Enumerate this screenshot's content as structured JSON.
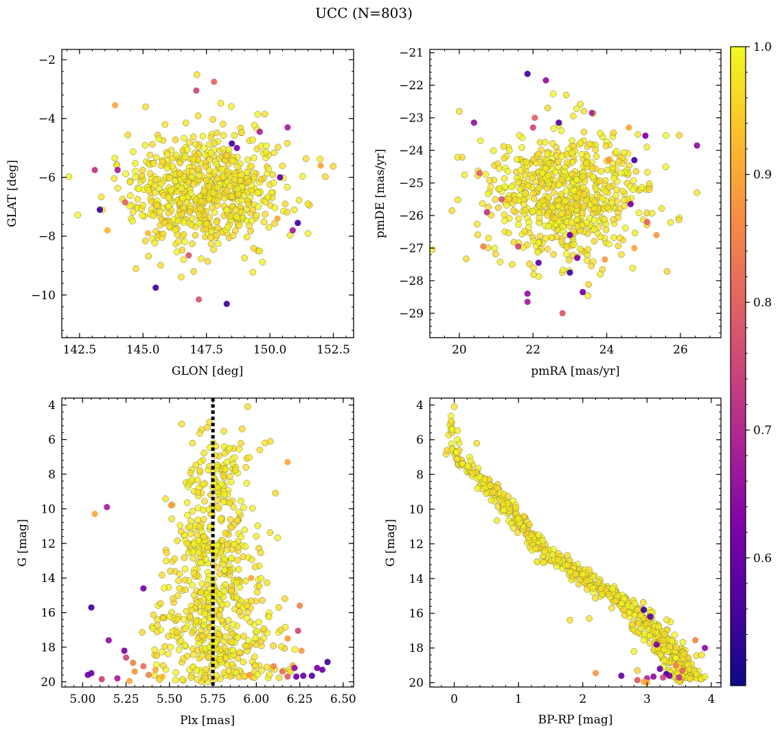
{
  "chart_data": {
    "title": "UCC (N=803)",
    "colorbar": {
      "colormap": "plasma",
      "range": [
        0.5,
        1.0
      ],
      "ticks": [
        0.6,
        0.7,
        0.8,
        0.9,
        1.0
      ],
      "tick_labels": [
        "0.6",
        "0.7",
        "0.8",
        "0.9",
        "1.0"
      ]
    },
    "panels": [
      {
        "type": "scatter",
        "xlabel": "GLON [deg]",
        "ylabel": "GLAT [deg]",
        "xlim": [
          141.8,
          153.3
        ],
        "ylim": [
          -11.45,
          -1.65
        ],
        "y_inverted": false,
        "xticks": [
          142.5,
          145.0,
          147.5,
          150.0,
          152.5
        ],
        "xtick_labels": [
          "142.5",
          "145.0",
          "147.5",
          "150.0",
          "152.5"
        ],
        "yticks": [
          -10,
          -8,
          -6,
          -4,
          -2
        ],
        "ytick_labels": [
          "−10",
          "−8",
          "−6",
          "−4",
          "−2"
        ],
        "cluster": {
          "model": "blob",
          "center": [
            147.5,
            -6.4
          ],
          "spread": [
            1.55,
            1.0
          ],
          "n": 640
        },
        "points": [
          {
            "x": 147.1,
            "y": -3.05,
            "p": 0.75
          },
          {
            "x": 147.8,
            "y": -2.75,
            "p": 0.8
          },
          {
            "x": 143.3,
            "y": -7.1,
            "p": 0.55
          },
          {
            "x": 143.1,
            "y": -5.75,
            "p": 0.72
          },
          {
            "x": 145.5,
            "y": -9.75,
            "p": 0.55
          },
          {
            "x": 148.3,
            "y": -10.3,
            "p": 0.55
          },
          {
            "x": 147.2,
            "y": -10.15,
            "p": 0.78
          },
          {
            "x": 151.1,
            "y": -7.55,
            "p": 0.55
          },
          {
            "x": 150.7,
            "y": -4.3,
            "p": 0.68
          },
          {
            "x": 152.0,
            "y": -5.6,
            "p": 0.9
          },
          {
            "x": 148.5,
            "y": -4.85,
            "p": 0.55
          },
          {
            "x": 149.6,
            "y": -4.45,
            "p": 0.68
          },
          {
            "x": 150.9,
            "y": -7.8,
            "p": 0.68
          },
          {
            "x": 144.0,
            "y": -5.75,
            "p": 0.68
          },
          {
            "x": 144.3,
            "y": -6.85,
            "p": 0.8
          },
          {
            "x": 146.8,
            "y": -8.65,
            "p": 0.78
          },
          {
            "x": 148.7,
            "y": -5.0,
            "p": 0.62
          },
          {
            "x": 150.4,
            "y": -6.0,
            "p": 0.6
          },
          {
            "x": 143.9,
            "y": -3.55,
            "p": 0.9
          },
          {
            "x": 143.6,
            "y": -7.8,
            "p": 0.92
          },
          {
            "x": 150.3,
            "y": -7.4,
            "p": 0.9
          },
          {
            "x": 145.2,
            "y": -7.9,
            "p": 0.92
          },
          {
            "x": 149.8,
            "y": -3.85,
            "p": 0.97
          },
          {
            "x": 147.0,
            "y": -9.2,
            "p": 0.96
          },
          {
            "x": 145.1,
            "y": -3.6,
            "p": 0.97
          },
          {
            "x": 151.5,
            "y": -6.9,
            "p": 0.97
          }
        ]
      },
      {
        "type": "scatter",
        "xlabel": "pmRA [mas/yr]",
        "ylabel": "pmDE [mas/yr]",
        "xlim": [
          19.2,
          27.1
        ],
        "ylim": [
          -29.75,
          -20.9
        ],
        "y_inverted": false,
        "xticks": [
          20,
          22,
          24,
          26
        ],
        "xtick_labels": [
          "20",
          "22",
          "24",
          "26"
        ],
        "yticks": [
          -29,
          -28,
          -27,
          -26,
          -25,
          -24,
          -23,
          -22,
          -21
        ],
        "ytick_labels": [
          "−29",
          "−28",
          "−27",
          "−26",
          "−25",
          "−24",
          "−23",
          "−22",
          "−21"
        ],
        "cluster": {
          "model": "blob",
          "center": [
            22.9,
            -25.4
          ],
          "spread": [
            1.05,
            1.0
          ],
          "n": 640
        },
        "points": [
          {
            "x": 21.85,
            "y": -21.65,
            "p": 0.55
          },
          {
            "x": 22.35,
            "y": -21.85,
            "p": 0.65
          },
          {
            "x": 20.4,
            "y": -23.15,
            "p": 0.65
          },
          {
            "x": 22.7,
            "y": -23.15,
            "p": 0.58
          },
          {
            "x": 23.6,
            "y": -22.85,
            "p": 0.68
          },
          {
            "x": 22.05,
            "y": -23.0,
            "p": 0.8
          },
          {
            "x": 22.0,
            "y": -23.3,
            "p": 0.75
          },
          {
            "x": 25.05,
            "y": -23.55,
            "p": 0.62
          },
          {
            "x": 26.45,
            "y": -23.85,
            "p": 0.65
          },
          {
            "x": 24.75,
            "y": -24.3,
            "p": 0.55
          },
          {
            "x": 24.65,
            "y": -25.65,
            "p": 0.62
          },
          {
            "x": 25.1,
            "y": -26.2,
            "p": 0.8
          },
          {
            "x": 25.35,
            "y": -26.6,
            "p": 0.88
          },
          {
            "x": 20.55,
            "y": -24.7,
            "p": 0.8
          },
          {
            "x": 21.15,
            "y": -25.5,
            "p": 0.78
          },
          {
            "x": 20.75,
            "y": -25.9,
            "p": 0.72
          },
          {
            "x": 20.65,
            "y": -26.95,
            "p": 0.85
          },
          {
            "x": 21.6,
            "y": -26.95,
            "p": 0.75
          },
          {
            "x": 21.85,
            "y": -28.4,
            "p": 0.65
          },
          {
            "x": 21.85,
            "y": -28.65,
            "p": 0.68
          },
          {
            "x": 22.8,
            "y": -29.0,
            "p": 0.78
          },
          {
            "x": 23.0,
            "y": -27.75,
            "p": 0.55
          },
          {
            "x": 23.35,
            "y": -28.35,
            "p": 0.6
          },
          {
            "x": 22.15,
            "y": -27.45,
            "p": 0.58
          },
          {
            "x": 23.0,
            "y": -26.6,
            "p": 0.6
          },
          {
            "x": 23.2,
            "y": -27.3,
            "p": 0.62
          },
          {
            "x": 23.95,
            "y": -27.35,
            "p": 0.88
          },
          {
            "x": 24.75,
            "y": -27.0,
            "p": 0.9
          },
          {
            "x": 24.6,
            "y": -23.3,
            "p": 0.9
          },
          {
            "x": 24.05,
            "y": -24.3,
            "p": 0.88
          },
          {
            "x": 20.0,
            "y": -22.8,
            "p": 0.97
          },
          {
            "x": 22.9,
            "y": -22.3,
            "p": 0.97
          },
          {
            "x": 26.45,
            "y": -25.3,
            "p": 0.97
          },
          {
            "x": 19.8,
            "y": -25.85,
            "p": 0.96
          },
          {
            "x": 22.4,
            "y": -22.7,
            "p": 0.96
          }
        ]
      },
      {
        "type": "scatter",
        "xlabel": "Plx [mas]",
        "ylabel": "G [mag]",
        "xlim": [
          4.88,
          6.56
        ],
        "ylim": [
          20.3,
          3.6
        ],
        "y_inverted": true,
        "xticks": [
          5.0,
          5.25,
          5.5,
          5.75,
          6.0,
          6.25,
          6.5
        ],
        "xtick_labels": [
          "5.00",
          "5.25",
          "5.50",
          "5.75",
          "6.00",
          "6.25",
          "6.50"
        ],
        "yticks": [
          4,
          6,
          8,
          10,
          12,
          14,
          16,
          18,
          20
        ],
        "ytick_labels": [
          "4",
          "6",
          "8",
          "10",
          "12",
          "14",
          "16",
          "18",
          "20"
        ],
        "reference_line": {
          "axis": "x",
          "value": 5.75,
          "style": "dotted"
        },
        "cluster": {
          "model": "cone",
          "center_x": 5.77,
          "g_range": [
            5.0,
            20.0
          ],
          "spread_bright": 0.14,
          "spread_faint": 0.32,
          "n": 650
        },
        "points": [
          {
            "x": 5.73,
            "y": 5.0,
            "p": 0.97
          },
          {
            "x": 5.95,
            "y": 4.1,
            "p": 0.97
          },
          {
            "x": 5.57,
            "y": 5.1,
            "p": 0.97
          },
          {
            "x": 6.08,
            "y": 6.1,
            "p": 0.97
          },
          {
            "x": 6.05,
            "y": 6.2,
            "p": 0.97
          },
          {
            "x": 6.02,
            "y": 6.6,
            "p": 0.97
          },
          {
            "x": 5.05,
            "y": 15.7,
            "p": 0.55
          },
          {
            "x": 5.14,
            "y": 9.9,
            "p": 0.68
          },
          {
            "x": 5.07,
            "y": 10.3,
            "p": 0.9
          },
          {
            "x": 5.15,
            "y": 17.6,
            "p": 0.65
          },
          {
            "x": 5.35,
            "y": 14.6,
            "p": 0.62
          },
          {
            "x": 5.24,
            "y": 18.2,
            "p": 0.62
          },
          {
            "x": 5.03,
            "y": 19.6,
            "p": 0.6
          },
          {
            "x": 5.05,
            "y": 19.5,
            "p": 0.6
          },
          {
            "x": 5.11,
            "y": 19.85,
            "p": 0.75
          },
          {
            "x": 5.2,
            "y": 19.8,
            "p": 0.68
          },
          {
            "x": 5.27,
            "y": 19.95,
            "p": 0.9
          },
          {
            "x": 5.25,
            "y": 18.6,
            "p": 0.75
          },
          {
            "x": 5.29,
            "y": 18.9,
            "p": 0.85
          },
          {
            "x": 5.3,
            "y": 19.4,
            "p": 0.88
          },
          {
            "x": 5.35,
            "y": 19.1,
            "p": 0.82
          },
          {
            "x": 5.38,
            "y": 19.6,
            "p": 0.85
          },
          {
            "x": 5.42,
            "y": 19.3,
            "p": 0.9
          },
          {
            "x": 5.46,
            "y": 19.7,
            "p": 0.92
          },
          {
            "x": 5.51,
            "y": 9.8,
            "p": 0.88
          },
          {
            "x": 5.96,
            "y": 19.6,
            "p": 0.88
          },
          {
            "x": 6.1,
            "y": 19.1,
            "p": 0.85
          },
          {
            "x": 6.15,
            "y": 19.4,
            "p": 0.82
          },
          {
            "x": 6.18,
            "y": 19.7,
            "p": 0.8
          },
          {
            "x": 6.21,
            "y": 19.05,
            "p": 0.9
          },
          {
            "x": 6.23,
            "y": 19.7,
            "p": 0.6
          },
          {
            "x": 6.22,
            "y": 19.2,
            "p": 0.65
          },
          {
            "x": 6.27,
            "y": 19.65,
            "p": 0.6
          },
          {
            "x": 6.32,
            "y": 19.65,
            "p": 0.58
          },
          {
            "x": 6.35,
            "y": 19.2,
            "p": 0.62
          },
          {
            "x": 6.38,
            "y": 19.3,
            "p": 0.6
          },
          {
            "x": 6.41,
            "y": 18.85,
            "p": 0.55
          },
          {
            "x": 6.26,
            "y": 18.2,
            "p": 0.88
          },
          {
            "x": 6.25,
            "y": 15.6,
            "p": 0.85
          },
          {
            "x": 6.24,
            "y": 17.05,
            "p": 0.75
          },
          {
            "x": 6.18,
            "y": 7.3,
            "p": 0.9
          },
          {
            "x": 6.11,
            "y": 9.1,
            "p": 0.96
          },
          {
            "x": 5.97,
            "y": 14.0,
            "p": 0.9
          },
          {
            "x": 6.18,
            "y": 17.5,
            "p": 0.88
          }
        ]
      },
      {
        "type": "scatter",
        "xlabel": "BP-RP [mag]",
        "ylabel": "G [mag]",
        "xlim": [
          -0.38,
          4.15
        ],
        "ylim": [
          20.25,
          3.6
        ],
        "y_inverted": true,
        "xticks": [
          0,
          1,
          2,
          3,
          4
        ],
        "xtick_labels": [
          "0",
          "1",
          "2",
          "3",
          "4"
        ],
        "yticks": [
          4,
          6,
          8,
          10,
          12,
          14,
          16,
          18,
          20
        ],
        "ytick_labels": [
          "4",
          "6",
          "8",
          "10",
          "12",
          "14",
          "16",
          "18",
          "20"
        ],
        "cluster": {
          "model": "sequence",
          "g_range": [
            4.0,
            20.0
          ],
          "n": 650,
          "track": [
            [
              0.0,
              4.1
            ],
            [
              -0.05,
              5.0
            ],
            [
              0.0,
              6.8
            ],
            [
              0.2,
              7.6
            ],
            [
              0.5,
              8.6
            ],
            [
              0.8,
              9.7
            ],
            [
              1.0,
              10.7
            ],
            [
              1.2,
              11.6
            ],
            [
              1.5,
              12.6
            ],
            [
              1.8,
              13.5
            ],
            [
              2.2,
              14.4
            ],
            [
              2.6,
              15.2
            ],
            [
              2.9,
              16.1
            ],
            [
              3.1,
              17.1
            ],
            [
              3.3,
              18.0
            ],
            [
              3.45,
              18.8
            ],
            [
              3.6,
              19.5
            ],
            [
              3.7,
              20.0
            ]
          ]
        },
        "points": [
          {
            "x": 2.95,
            "y": 15.8,
            "p": 0.55
          },
          {
            "x": 3.05,
            "y": 16.2,
            "p": 0.58
          },
          {
            "x": 3.15,
            "y": 17.8,
            "p": 0.62
          },
          {
            "x": 3.9,
            "y": 18.0,
            "p": 0.65
          },
          {
            "x": 3.2,
            "y": 19.2,
            "p": 0.6
          },
          {
            "x": 3.3,
            "y": 19.5,
            "p": 0.55
          },
          {
            "x": 3.1,
            "y": 19.65,
            "p": 0.65
          },
          {
            "x": 3.25,
            "y": 19.7,
            "p": 0.75
          },
          {
            "x": 3.0,
            "y": 19.75,
            "p": 0.7
          },
          {
            "x": 3.35,
            "y": 19.6,
            "p": 0.62
          },
          {
            "x": 3.5,
            "y": 19.7,
            "p": 0.72
          },
          {
            "x": 3.55,
            "y": 19.3,
            "p": 0.8
          },
          {
            "x": 3.45,
            "y": 19.0,
            "p": 0.85
          },
          {
            "x": 3.75,
            "y": 17.55,
            "p": 0.85
          },
          {
            "x": 2.6,
            "y": 19.6,
            "p": 0.6
          },
          {
            "x": 2.85,
            "y": 19.85,
            "p": 0.78
          },
          {
            "x": 2.95,
            "y": 19.95,
            "p": 0.9
          },
          {
            "x": 3.0,
            "y": 20.0,
            "p": 0.9
          },
          {
            "x": 2.2,
            "y": 19.45,
            "p": 0.88
          },
          {
            "x": 3.85,
            "y": 18.4,
            "p": 0.97
          },
          {
            "x": 1.8,
            "y": 16.4,
            "p": 0.97
          },
          {
            "x": 2.1,
            "y": 16.3,
            "p": 0.97
          },
          {
            "x": 2.85,
            "y": 19.3,
            "p": 0.96
          },
          {
            "x": 0.0,
            "y": 4.1,
            "p": 0.97
          },
          {
            "x": 0.35,
            "y": 6.2,
            "p": 0.97
          },
          {
            "x": 2.1,
            "y": 13.5,
            "p": 0.97
          }
        ]
      }
    ]
  }
}
